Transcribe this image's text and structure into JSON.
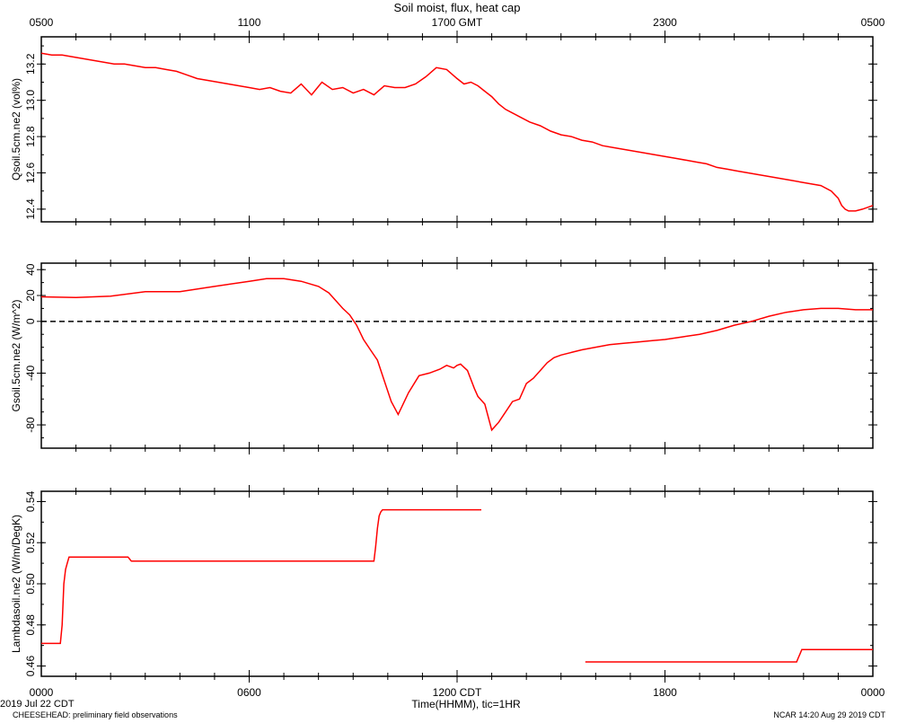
{
  "colors": {
    "series": "#ff0000",
    "axis": "#000000",
    "zero_line": "#000000",
    "background": "#ffffff"
  },
  "footer": {
    "date": "2019 Jul 22 CDT",
    "project": "CHEESEHEAD: preliminary field observations",
    "stamp": "NCAR 14:20 Aug 29 2019 CDT"
  },
  "chart_data": [
    {
      "type": "line",
      "title": "Soil moist, flux, heat cap",
      "top_axis_ticks": [
        "0500",
        "1100",
        "1700 GMT",
        "2300",
        "0500"
      ],
      "ylabel": "Qsoil.5cm.ne2 (vol%)",
      "ylim": [
        12.33,
        13.35
      ],
      "yticks": [
        "12.4",
        "12.6",
        "12.8",
        "13.0",
        "13.2"
      ],
      "grid": false,
      "series": [
        {
          "x": [
            0,
            0.3,
            0.6,
            0.9,
            1.2,
            1.5,
            1.8,
            2.1,
            2.4,
            2.7,
            3.0,
            3.3,
            3.6,
            3.9,
            4.2,
            4.5,
            4.8,
            5.1,
            5.4,
            5.7,
            6.0,
            6.3,
            6.6,
            6.9,
            7.2,
            7.5,
            7.8,
            8.1,
            8.4,
            8.7,
            9.0,
            9.3,
            9.6,
            9.9,
            10.2,
            10.5,
            10.8,
            11.1,
            11.4,
            11.7,
            12.0,
            12.2,
            12.4,
            12.6,
            12.8,
            13.0,
            13.2,
            13.4,
            13.6,
            13.8,
            14.1,
            14.4,
            14.7,
            15.0,
            15.3,
            15.6,
            15.9,
            16.2,
            16.5,
            16.8,
            17.1,
            17.4,
            17.7,
            18.0,
            18.3,
            18.6,
            18.9,
            19.2,
            19.5,
            19.8,
            20.1,
            20.4,
            20.7,
            21.0,
            21.3,
            21.6,
            21.9,
            22.2,
            22.5,
            22.8,
            23.0,
            23.1,
            23.2,
            23.3,
            23.5,
            23.7,
            24.0
          ],
          "y": [
            13.26,
            13.25,
            13.25,
            13.24,
            13.23,
            13.22,
            13.21,
            13.2,
            13.2,
            13.19,
            13.18,
            13.18,
            13.17,
            13.16,
            13.14,
            13.12,
            13.11,
            13.1,
            13.09,
            13.08,
            13.07,
            13.06,
            13.07,
            13.05,
            13.04,
            13.09,
            13.03,
            13.1,
            13.06,
            13.07,
            13.04,
            13.06,
            13.03,
            13.08,
            13.07,
            13.07,
            13.09,
            13.13,
            13.18,
            13.17,
            13.12,
            13.09,
            13.1,
            13.08,
            13.05,
            13.02,
            12.98,
            12.95,
            12.93,
            12.91,
            12.88,
            12.86,
            12.83,
            12.81,
            12.8,
            12.78,
            12.77,
            12.75,
            12.74,
            12.73,
            12.72,
            12.71,
            12.7,
            12.69,
            12.68,
            12.67,
            12.66,
            12.65,
            12.63,
            12.62,
            12.61,
            12.6,
            12.59,
            12.58,
            12.57,
            12.56,
            12.55,
            12.54,
            12.53,
            12.5,
            12.46,
            12.42,
            12.4,
            12.39,
            12.39,
            12.4,
            12.42
          ]
        }
      ]
    },
    {
      "type": "line",
      "ylabel": "Gsoil.5cm.ne2 (W/m^2)",
      "ylim": [
        -98,
        45
      ],
      "yticks": [
        "-80",
        "-40",
        "0",
        "20",
        "40"
      ],
      "zero_line": "dashed",
      "grid": false,
      "series": [
        {
          "x": [
            0,
            1,
            2,
            3,
            4,
            5,
            6,
            6.5,
            7,
            7.5,
            8,
            8.3,
            8.5,
            8.7,
            8.9,
            9.1,
            9.3,
            9.5,
            9.7,
            9.9,
            10.1,
            10.3,
            10.6,
            10.9,
            11.2,
            11.5,
            11.7,
            11.9,
            12.0,
            12.1,
            12.3,
            12.5,
            12.6,
            12.8,
            13.0,
            13.2,
            13.4,
            13.6,
            13.8,
            14.0,
            14.2,
            14.4,
            14.6,
            14.8,
            15.0,
            15.3,
            15.6,
            16.0,
            16.4,
            16.8,
            17.2,
            17.6,
            18.0,
            18.5,
            19.0,
            19.5,
            20.0,
            20.5,
            21.0,
            21.5,
            22.0,
            22.5,
            23.0,
            23.5,
            24.0
          ],
          "y": [
            19,
            18.5,
            19.5,
            23,
            23,
            27,
            31,
            33,
            33,
            31,
            27,
            22,
            16,
            10,
            5,
            -3,
            -14,
            -22,
            -30,
            -46,
            -62,
            -72,
            -55,
            -42,
            -40,
            -37,
            -34,
            -36,
            -34,
            -33,
            -38,
            -52,
            -58,
            -64,
            -84,
            -78,
            -70,
            -62,
            -60,
            -48,
            -44,
            -38,
            -32,
            -28,
            -26,
            -24,
            -22,
            -20,
            -18,
            -17,
            -16,
            -15,
            -14,
            -12,
            -10,
            -7,
            -3,
            0,
            4,
            7,
            9,
            10,
            10,
            9,
            9
          ]
        }
      ]
    },
    {
      "type": "line",
      "ylabel": "Lambdasoil.ne2 (W/m/DegK)",
      "ylim": [
        0.455,
        0.545
      ],
      "yticks": [
        "0.46",
        "0.48",
        "0.50",
        "0.52",
        "0.54"
      ],
      "xlabel": "Time(HHMM), tic=1HR",
      "xticks": [
        "0000",
        "0600",
        "1200 CDT",
        "1800",
        "0000"
      ],
      "grid": false,
      "series": [
        {
          "segments": [
            {
              "x": [
                0,
                0.55,
                0.6,
                0.65,
                0.7,
                0.75,
                0.8,
                2.5,
                2.55,
                2.6,
                2.65,
                9.6,
                9.65,
                9.7,
                9.75,
                9.8,
                9.85,
                9.9,
                12.7
              ],
              "y": [
                0.471,
                0.471,
                0.48,
                0.5,
                0.507,
                0.51,
                0.513,
                0.513,
                0.512,
                0.511,
                0.511,
                0.511,
                0.518,
                0.527,
                0.533,
                0.535,
                0.536,
                0.536,
                0.536
              ]
            },
            {
              "x": [
                15.7,
                21.8,
                21.85,
                21.9,
                21.95,
                22.0,
                24.0
              ],
              "y": [
                0.462,
                0.462,
                0.464,
                0.466,
                0.468,
                0.468,
                0.468
              ]
            }
          ]
        }
      ]
    }
  ]
}
